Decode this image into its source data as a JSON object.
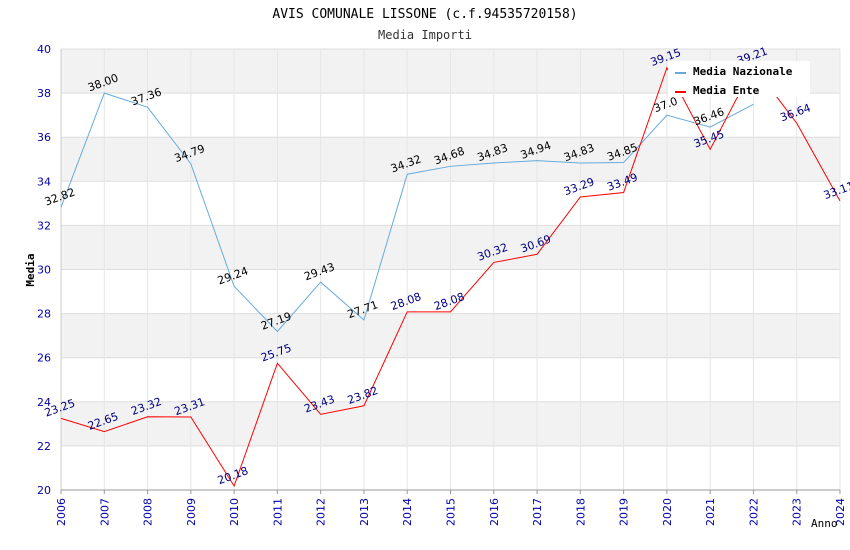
{
  "chart_data": {
    "type": "line",
    "title": "AVIS COMUNALE LISSONE (c.f.94535720158)",
    "subtitle": "Media Importi",
    "xlabel": "Anno",
    "ylabel": "Media",
    "ylim": [
      20,
      40
    ],
    "y_ticks": [
      20,
      22,
      24,
      26,
      28,
      30,
      32,
      34,
      36,
      38,
      40
    ],
    "grid": true,
    "legend_position": "top-right",
    "categories": [
      "2006",
      "2007",
      "2008",
      "2009",
      "2010",
      "2011",
      "2012",
      "2013",
      "2014",
      "2015",
      "2016",
      "2017",
      "2018",
      "2019",
      "2020",
      "2021",
      "2022",
      "2023",
      "2024"
    ],
    "series": [
      {
        "name": "Media Nazionale",
        "color": "#66aadd",
        "label_color": "#000000",
        "values": [
          32.82,
          38.0,
          37.36,
          34.79,
          29.24,
          27.19,
          29.43,
          27.71,
          34.32,
          34.68,
          34.83,
          34.94,
          34.83,
          34.85,
          37.0,
          36.46,
          37.5,
          null,
          null
        ],
        "labels": [
          "32.82",
          "38.00",
          "37.36",
          "34.79",
          "29.24",
          "27.19",
          "29.43",
          "27.71",
          "34.32",
          "34.68",
          "34.83",
          "34.94",
          "34.83",
          "34.85",
          "37.0",
          "36.46",
          "",
          "",
          ""
        ]
      },
      {
        "name": "Media Ente",
        "color": "#ff0000",
        "label_color": "#000080",
        "values": [
          23.25,
          22.65,
          23.32,
          23.31,
          20.18,
          25.75,
          23.43,
          23.82,
          28.08,
          28.08,
          30.32,
          30.69,
          33.29,
          33.49,
          39.15,
          35.45,
          39.21,
          36.64,
          33.11
        ],
        "labels": [
          "23.25",
          "22.65",
          "23.32",
          "23.31",
          "20.18",
          "25.75",
          "23.43",
          "23.82",
          "28.08",
          "28.08",
          "30.32",
          "30.69",
          "33.29",
          "33.49",
          "39.15",
          "35.45",
          "39.21",
          "36.64",
          "33.11"
        ]
      }
    ]
  }
}
